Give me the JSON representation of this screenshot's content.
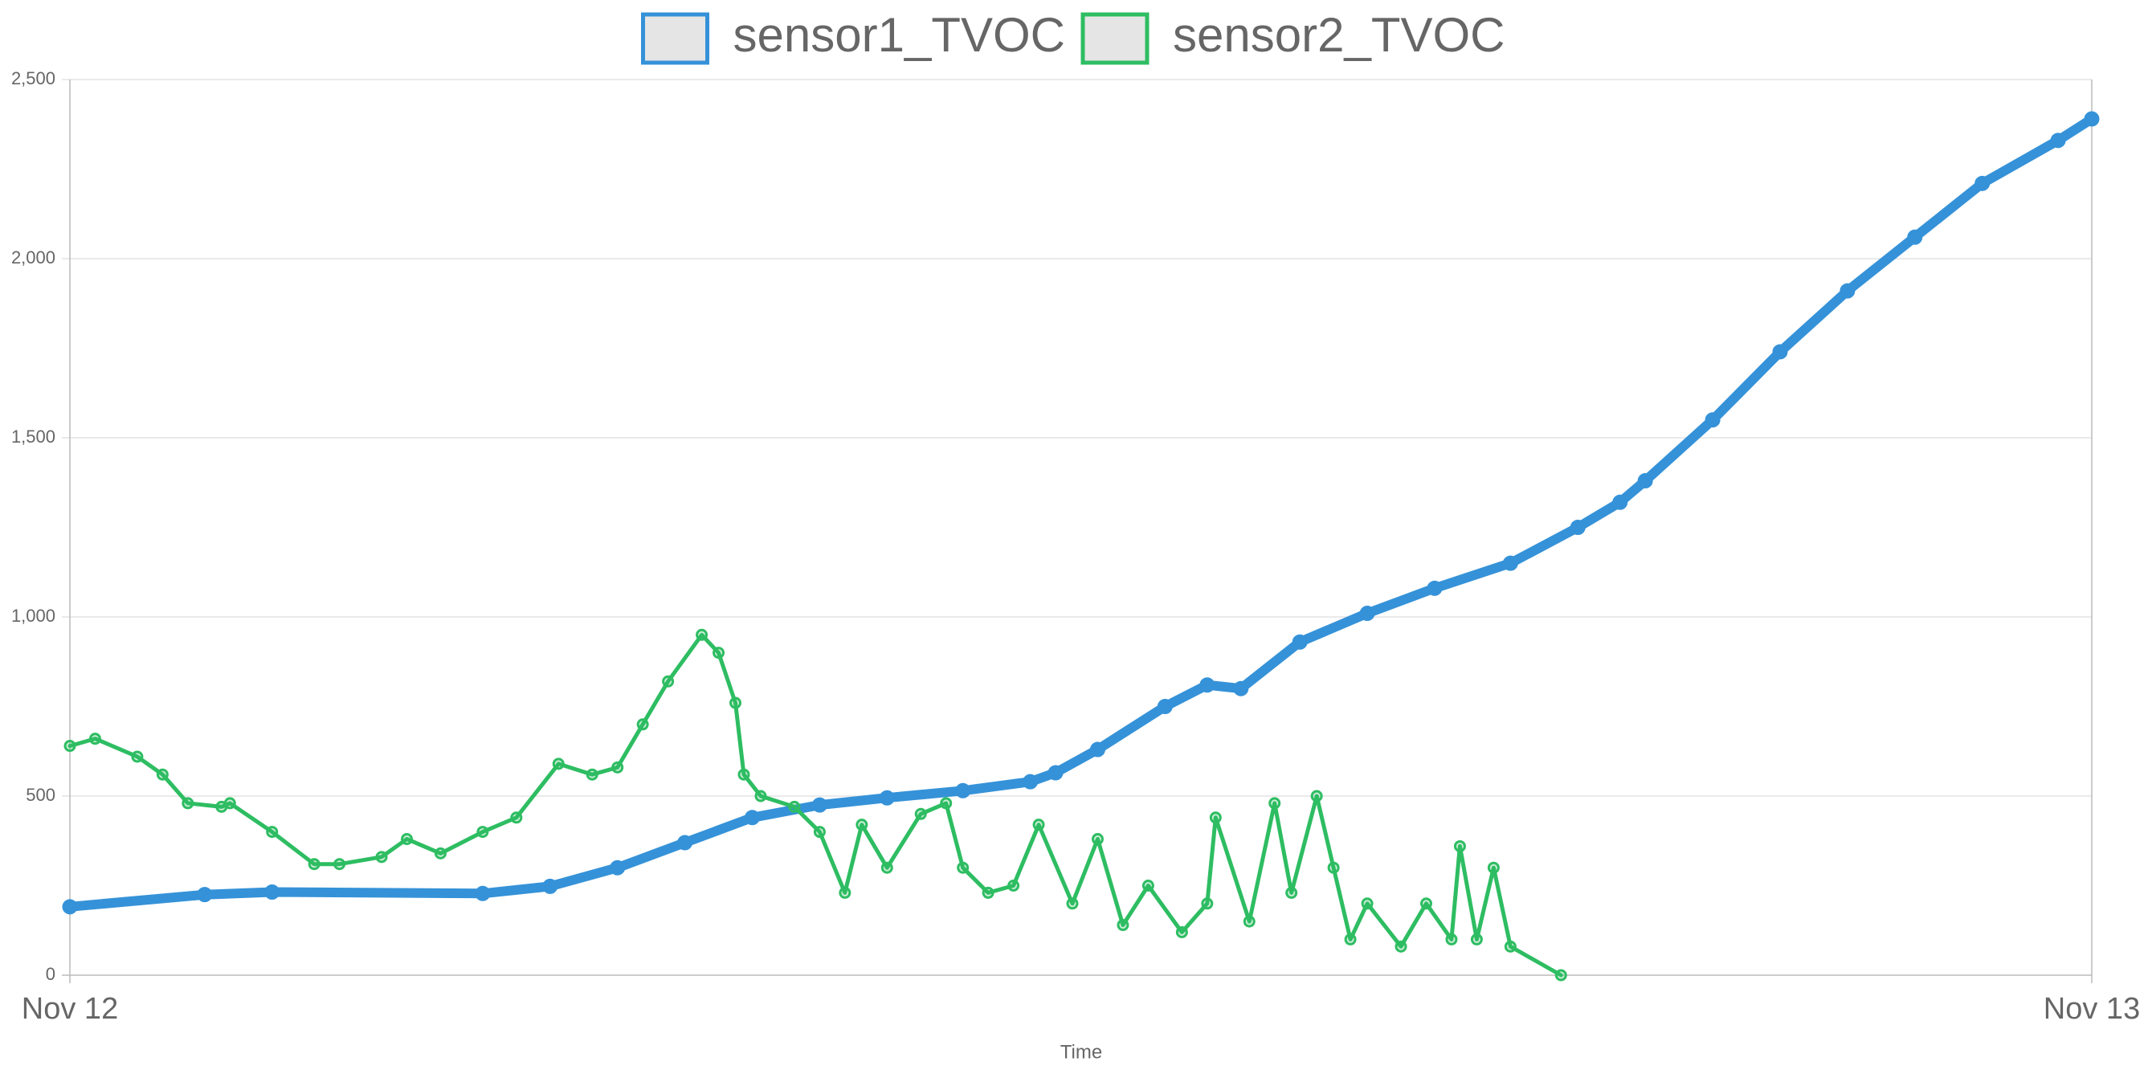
{
  "chart_data": {
    "type": "line",
    "x_label": "Time",
    "xlim": [
      0,
      24
    ],
    "xticks": [
      {
        "value": 0,
        "label": "Nov 12"
      },
      {
        "value": 24,
        "label": "Nov 13"
      }
    ],
    "ylim": [
      0,
      2500
    ],
    "yticks": [
      0,
      500,
      {
        "value": 1000,
        "label": "1,000"
      },
      {
        "value": 1500,
        "label": "1,500"
      },
      {
        "value": 2000,
        "label": "2,000"
      },
      {
        "value": 2500,
        "label": "2,500"
      }
    ],
    "grid": true,
    "legend": "top",
    "series": [
      {
        "name": "sensor1_TVOC",
        "color": "#3592d8",
        "x": [
          0,
          1.6,
          2.4,
          4.9,
          5.7,
          6.5,
          7.3,
          8.1,
          8.9,
          9.7,
          10.6,
          11.4,
          11.7,
          12.2,
          13.0,
          13.5,
          13.9,
          14.6,
          15.4,
          16.2,
          17.1,
          17.9,
          18.4,
          18.7,
          19.5,
          20.3,
          21.1,
          21.9,
          22.7,
          23.6,
          24
        ],
        "values": [
          191,
          225,
          232,
          228,
          248,
          300,
          370,
          440,
          475,
          495,
          515,
          540,
          565,
          630,
          750,
          810,
          800,
          930,
          1010,
          1080,
          1150,
          1250,
          1320,
          1380,
          1550,
          1740,
          1910,
          2060,
          2210,
          2330,
          2390
        ]
      },
      {
        "name": "sensor2_TVOC",
        "color": "#2ebd62",
        "x": [
          0,
          0.3,
          0.8,
          1.1,
          1.4,
          1.8,
          1.9,
          2.4,
          2.9,
          3.2,
          3.7,
          4.0,
          4.4,
          4.9,
          5.3,
          5.8,
          6.2,
          6.5,
          6.8,
          7.1,
          7.5,
          7.7,
          7.9,
          8.0,
          8.2,
          8.6,
          8.9,
          9.2,
          9.4,
          9.7,
          10.1,
          10.4,
          10.6,
          10.9,
          11.2,
          11.5,
          11.9,
          12.2,
          12.5,
          12.8,
          13.2,
          13.5,
          13.6,
          14.0,
          14.3,
          14.5,
          14.8,
          15.0,
          15.2,
          15.4,
          15.8,
          16.1,
          16.4,
          16.5,
          16.7,
          16.9,
          17.1,
          17.7
        ],
        "values": [
          640,
          660,
          610,
          560,
          480,
          470,
          480,
          400,
          310,
          310,
          330,
          380,
          340,
          400,
          440,
          590,
          560,
          580,
          700,
          820,
          950,
          900,
          760,
          560,
          500,
          470,
          400,
          230,
          420,
          300,
          450,
          480,
          300,
          230,
          250,
          420,
          200,
          380,
          140,
          250,
          120,
          200,
          440,
          150,
          480,
          230,
          500,
          300,
          100,
          200,
          80,
          200,
          100,
          360,
          100,
          300,
          80,
          0
        ]
      }
    ]
  }
}
